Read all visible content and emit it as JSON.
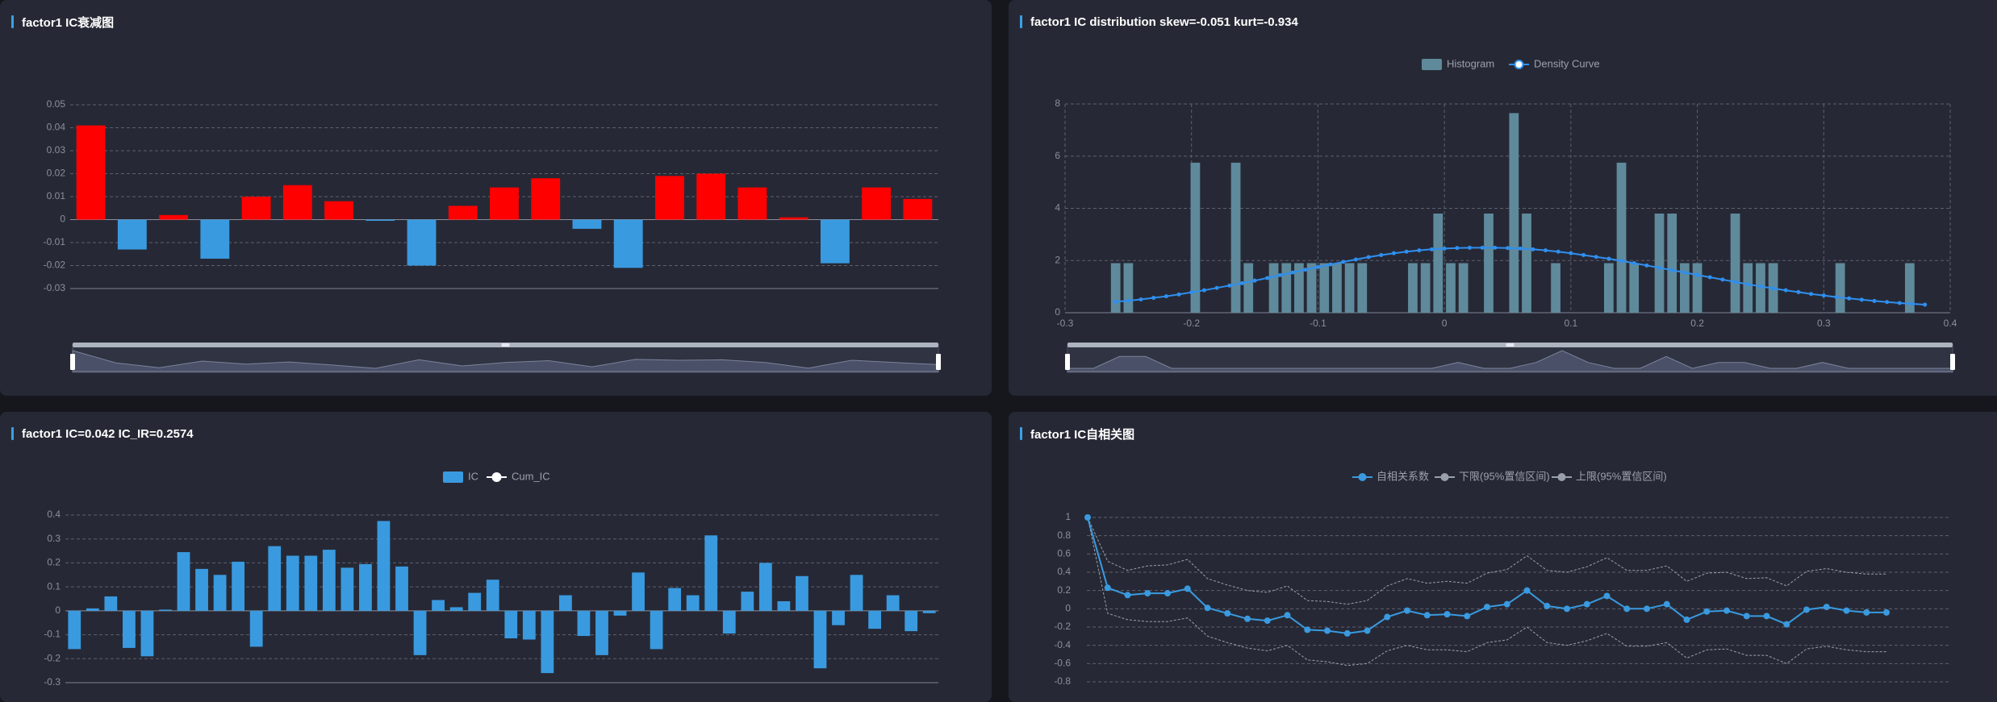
{
  "panels": {
    "decay": {
      "title": "factor1 IC衰减图"
    },
    "dist": {
      "title": "factor1 IC distribution skew=-0.051 kurt=-0.934"
    },
    "ic": {
      "title": "factor1 IC=0.042 IC_IR=0.2574"
    },
    "acf": {
      "title": "factor1 IC自相关图"
    }
  },
  "colors": {
    "positive": "#ff0000",
    "negative": "#3a9ae0",
    "hist": "#5f8a9c",
    "density": "#2f8ff0",
    "ic": "#3a9ae0",
    "acf": "#3a9ae0",
    "band": "#9aa0aa"
  },
  "chart_data": [
    {
      "id": "decay",
      "type": "bar",
      "title": "factor1 IC衰减图",
      "ylim": [
        -0.03,
        0.05
      ],
      "yticks": [
        "0.05",
        "0.04",
        "0.03",
        "0.02",
        "0.01",
        "0",
        "-0.01",
        "-0.02",
        "-0.03"
      ],
      "values": [
        0.041,
        -0.013,
        0.002,
        -0.017,
        0.01,
        0.015,
        0.008,
        -0.0005,
        -0.02,
        0.006,
        0.014,
        0.018,
        -0.004,
        -0.021,
        0.019,
        0.02,
        0.014,
        0.001,
        -0.019,
        0.014,
        0.009
      ],
      "grid": true,
      "datazoom": true
    },
    {
      "id": "dist",
      "type": "bar",
      "title": "factor1 IC distribution skew=-0.051 kurt=-0.934",
      "legend": [
        "Histogram",
        "Density Curve"
      ],
      "legend_position": "top-center",
      "xlim": [
        -0.3,
        0.4
      ],
      "ylim": [
        0,
        8
      ],
      "xticks": [
        "-0.3",
        "-0.2",
        "-0.1",
        "0",
        "0.1",
        "0.2",
        "0.3",
        "0.4"
      ],
      "yticks": [
        "8",
        "6",
        "4",
        "2",
        "0"
      ],
      "histogram": {
        "bin_centers": [
          -0.26,
          -0.25,
          -0.197,
          -0.165,
          -0.155,
          -0.135,
          -0.125,
          -0.115,
          -0.105,
          -0.095,
          -0.085,
          -0.075,
          -0.065,
          -0.025,
          -0.015,
          -0.005,
          0.005,
          0.015,
          0.035,
          0.055,
          0.065,
          0.088,
          0.13,
          0.14,
          0.15,
          0.17,
          0.18,
          0.19,
          0.2,
          0.23,
          0.24,
          0.25,
          0.26,
          0.313,
          0.368
        ],
        "counts": [
          1.9,
          1.9,
          5.75,
          5.75,
          1.9,
          1.9,
          1.9,
          1.9,
          1.9,
          1.9,
          1.9,
          1.9,
          1.9,
          1.9,
          1.9,
          3.8,
          1.9,
          1.9,
          3.8,
          7.65,
          3.8,
          1.9,
          1.9,
          5.75,
          1.9,
          3.8,
          3.8,
          1.9,
          1.9,
          3.8,
          1.9,
          1.9,
          1.9,
          1.9,
          1.9
        ]
      },
      "density": {
        "x": [
          -0.26,
          -0.25,
          -0.24,
          -0.23,
          -0.22,
          -0.21,
          -0.2,
          -0.19,
          -0.18,
          -0.17,
          -0.16,
          -0.15,
          -0.14,
          -0.13,
          -0.12,
          -0.11,
          -0.1,
          -0.09,
          -0.08,
          -0.07,
          -0.06,
          -0.05,
          -0.04,
          -0.03,
          -0.02,
          -0.01,
          0,
          0.01,
          0.02,
          0.03,
          0.04,
          0.05,
          0.06,
          0.07,
          0.08,
          0.09,
          0.1,
          0.11,
          0.12,
          0.13,
          0.14,
          0.15,
          0.16,
          0.17,
          0.18,
          0.19,
          0.2,
          0.21,
          0.22,
          0.23,
          0.24,
          0.25,
          0.26,
          0.27,
          0.28,
          0.29,
          0.3,
          0.31,
          0.32,
          0.33,
          0.34,
          0.35,
          0.36,
          0.37,
          0.38
        ],
        "y": [
          0.42,
          0.46,
          0.51,
          0.57,
          0.63,
          0.7,
          0.78,
          0.86,
          0.95,
          1.04,
          1.13,
          1.23,
          1.33,
          1.44,
          1.54,
          1.65,
          1.75,
          1.85,
          1.95,
          2.04,
          2.13,
          2.21,
          2.28,
          2.34,
          2.39,
          2.43,
          2.46,
          2.48,
          2.49,
          2.49,
          2.49,
          2.48,
          2.46,
          2.43,
          2.39,
          2.34,
          2.28,
          2.21,
          2.14,
          2.07,
          1.99,
          1.9,
          1.81,
          1.72,
          1.63,
          1.54,
          1.45,
          1.36,
          1.27,
          1.18,
          1.09,
          1.01,
          0.93,
          0.86,
          0.79,
          0.72,
          0.66,
          0.6,
          0.55,
          0.5,
          0.45,
          0.41,
          0.37,
          0.34,
          0.31
        ]
      },
      "grid": true,
      "datazoom": true
    },
    {
      "id": "ic",
      "type": "bar",
      "title": "factor1 IC=0.042 IC_IR=0.2574",
      "legend": [
        "IC",
        "Cum_IC"
      ],
      "legend_position": "top-center",
      "ylim": [
        -0.3,
        0.4
      ],
      "yticks": [
        "0.4",
        "0.3",
        "0.2",
        "0.1",
        "0",
        "-0.1",
        "-0.2",
        "-0.3"
      ],
      "values": [
        -0.16,
        0.01,
        0.06,
        -0.155,
        -0.19,
        0.005,
        0.245,
        0.175,
        0.15,
        0.205,
        -0.15,
        0.27,
        0.23,
        0.23,
        0.255,
        0.18,
        0.195,
        0.375,
        0.185,
        -0.185,
        0.045,
        0.015,
        0.075,
        0.13,
        -0.115,
        -0.12,
        -0.26,
        0.065,
        -0.105,
        -0.185,
        -0.02,
        0.16,
        -0.16,
        0.095,
        0.065,
        0.315,
        -0.095,
        0.08,
        0.2,
        0.04,
        0.145,
        -0.24,
        -0.06,
        0.15,
        -0.075,
        0.065,
        -0.085,
        -0.01
      ],
      "grid": true
    },
    {
      "id": "acf",
      "type": "line",
      "title": "factor1 IC自相关图",
      "legend": [
        "自相关系数",
        "下限(95%置信区间)",
        "上限(95%置信区间)"
      ],
      "legend_position": "top-center",
      "ylim": [
        -0.8,
        1
      ],
      "yticks": [
        "1",
        "0.8",
        "0.6",
        "0.4",
        "0.2",
        "0",
        "-0.2",
        "-0.4",
        "-0.6",
        "-0.8"
      ],
      "series": [
        {
          "name": "自相关系数",
          "values": [
            1,
            0.23,
            0.15,
            0.17,
            0.17,
            0.22,
            0.01,
            -0.05,
            -0.11,
            -0.13,
            -0.07,
            -0.23,
            -0.24,
            -0.27,
            -0.24,
            -0.09,
            -0.02,
            -0.07,
            -0.06,
            -0.08,
            0.02,
            0.05,
            0.2,
            0.03,
            0.0,
            0.05,
            0.14,
            0.0,
            0.0,
            0.05,
            -0.12,
            -0.03,
            -0.02,
            -0.08,
            -0.08,
            -0.17,
            -0.01,
            0.02,
            -0.02,
            -0.04,
            -0.04
          ]
        },
        {
          "name": "下限(95%置信区间)",
          "values": [
            1,
            -0.05,
            -0.12,
            -0.14,
            -0.14,
            -0.1,
            -0.3,
            -0.37,
            -0.43,
            -0.46,
            -0.4,
            -0.56,
            -0.58,
            -0.62,
            -0.6,
            -0.46,
            -0.4,
            -0.45,
            -0.45,
            -0.47,
            -0.37,
            -0.34,
            -0.2,
            -0.37,
            -0.4,
            -0.35,
            -0.27,
            -0.41,
            -0.41,
            -0.37,
            -0.54,
            -0.45,
            -0.44,
            -0.51,
            -0.51,
            -0.6,
            -0.44,
            -0.41,
            -0.45,
            -0.47,
            -0.47
          ]
        },
        {
          "name": "上限(95%置信区间)",
          "values": [
            1,
            0.52,
            0.42,
            0.47,
            0.48,
            0.54,
            0.33,
            0.26,
            0.2,
            0.18,
            0.25,
            0.09,
            0.08,
            0.05,
            0.09,
            0.25,
            0.33,
            0.28,
            0.3,
            0.28,
            0.39,
            0.43,
            0.58,
            0.42,
            0.4,
            0.46,
            0.56,
            0.42,
            0.42,
            0.47,
            0.3,
            0.39,
            0.4,
            0.33,
            0.34,
            0.25,
            0.41,
            0.44,
            0.4,
            0.38,
            0.38
          ]
        }
      ],
      "grid": true
    }
  ]
}
